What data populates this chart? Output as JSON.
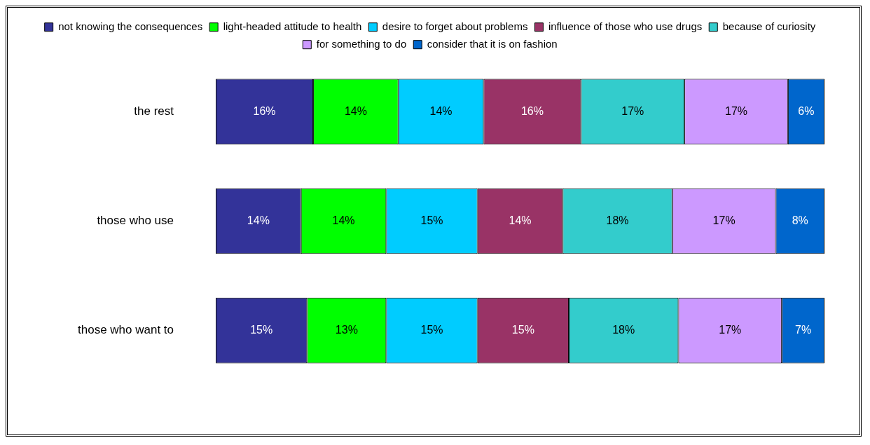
{
  "chart_data": {
    "type": "bar",
    "orientation": "horizontal",
    "stacked": true,
    "legend": "top",
    "categories": [
      "the rest",
      "those who use",
      "those who want to"
    ],
    "series": [
      {
        "name": "not knowing the consequences",
        "color": "#333399",
        "values": [
          16,
          14,
          15
        ],
        "value_labels": [
          "16%",
          "14%",
          "15%"
        ]
      },
      {
        "name": "light-headed attitude to health",
        "color": "#00ff00",
        "values": [
          14,
          14,
          13
        ],
        "value_labels": [
          "14%",
          "14%",
          "13%"
        ]
      },
      {
        "name": "desire to forget about problems",
        "color": "#00ccff",
        "values": [
          14,
          15,
          15
        ],
        "value_labels": [
          "14%",
          "15%",
          "15%"
        ]
      },
      {
        "name": "influence of those who use drugs",
        "color": "#993366",
        "values": [
          16,
          14,
          15
        ],
        "value_labels": [
          "16%",
          "14%",
          "15%"
        ]
      },
      {
        "name": "because of curiosity",
        "color": "#33cccc",
        "values": [
          17,
          18,
          18
        ],
        "value_labels": [
          "17%",
          "18%",
          "18%"
        ]
      },
      {
        "name": "for something to do",
        "color": "#cc99ff",
        "values": [
          17,
          17,
          17
        ],
        "value_labels": [
          "17%",
          "17%",
          "17%"
        ]
      },
      {
        "name": "consider that it is on fashion",
        "color": "#0066cc",
        "values": [
          6,
          8,
          7
        ],
        "value_labels": [
          "6%",
          "8%",
          "7%"
        ]
      }
    ]
  }
}
